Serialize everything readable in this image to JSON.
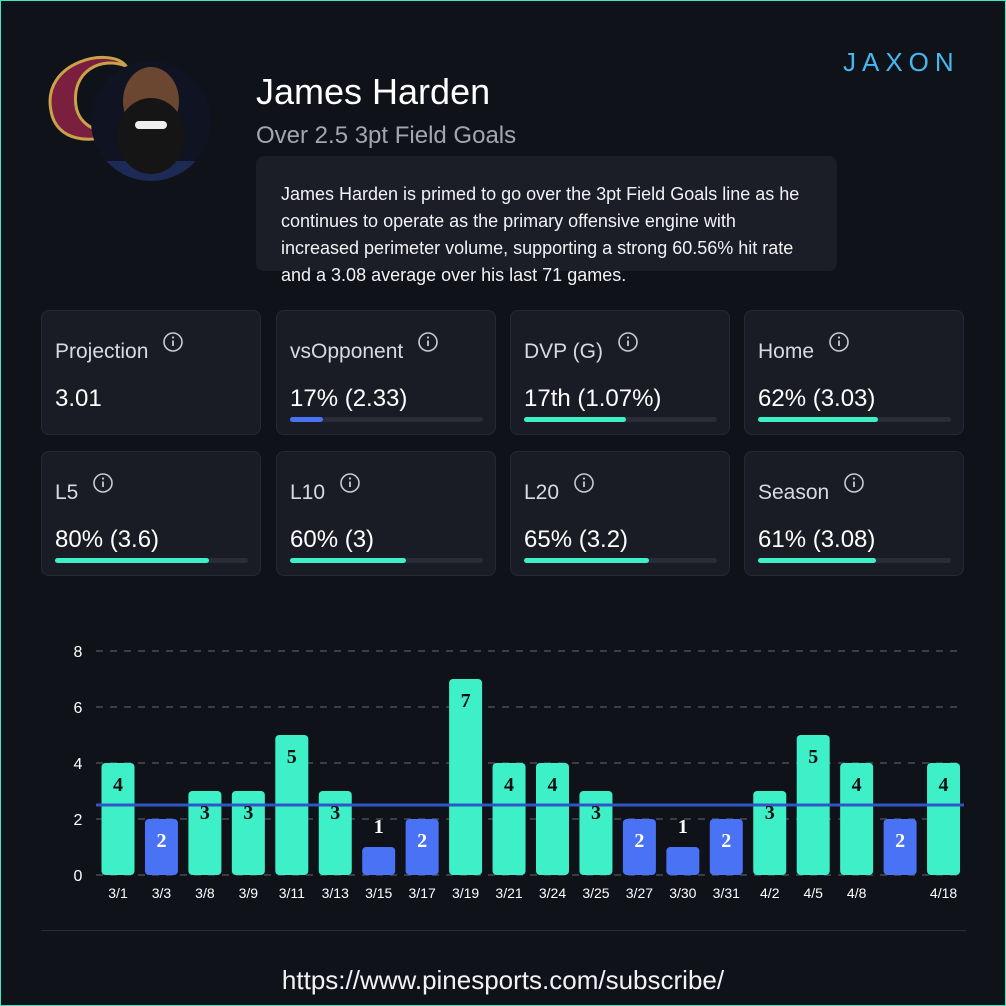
{
  "header": {
    "name": "James Harden",
    "prop": "Over 2.5 3pt Field Goals",
    "description": "James Harden is primed to go over the 3pt Field Goals line as he continues to operate as the primary offensive engine with increased perimeter volume, supporting a strong 60.56% hit rate and a 3.08 average over his last 71 games.",
    "brand": "JAXON"
  },
  "stats": [
    {
      "label": "Projection",
      "value": "3.01"
    },
    {
      "label": "vsOpponent",
      "value": "17% (2.33)",
      "bar": 17,
      "color": "#4a72f5"
    },
    {
      "label": "DVP (G)",
      "value": "17th (1.07%)",
      "bar": 53,
      "color": "#3ef0c8"
    },
    {
      "label": "Home",
      "value": "62% (3.03)",
      "bar": 62,
      "color": "#3ef0c8"
    },
    {
      "label": "L5",
      "value": "80% (3.6)",
      "bar": 80,
      "color": "#3ef0c8"
    },
    {
      "label": "L10",
      "value": "60% (3)",
      "bar": 60,
      "color": "#3ef0c8"
    },
    {
      "label": "L20",
      "value": "65% (3.2)",
      "bar": 65,
      "color": "#3ef0c8"
    },
    {
      "label": "Season",
      "value": "61% (3.08)",
      "bar": 61,
      "color": "#3ef0c8"
    }
  ],
  "chart_data": {
    "type": "bar",
    "categories": [
      "3/1",
      "3/3",
      "3/8",
      "3/9",
      "3/11",
      "3/13",
      "3/15",
      "3/17",
      "3/19",
      "3/21",
      "3/24",
      "3/25",
      "3/27",
      "3/30",
      "3/31",
      "4/2",
      "4/5",
      "4/8",
      null,
      "4/18"
    ],
    "values": [
      4,
      2,
      3,
      3,
      5,
      3,
      1,
      2,
      7,
      4,
      4,
      3,
      2,
      1,
      2,
      3,
      5,
      4,
      2,
      4
    ],
    "line": 2.5,
    "line_color": "#2f56c8",
    "over_color": "#3ef0c8",
    "under_color": "#4a72f5",
    "ylim": [
      0,
      8
    ],
    "yticks": [
      0,
      2,
      4,
      6,
      8
    ],
    "grid": true
  },
  "footer": {
    "url": "https://www.pinesports.com/subscribe/"
  }
}
